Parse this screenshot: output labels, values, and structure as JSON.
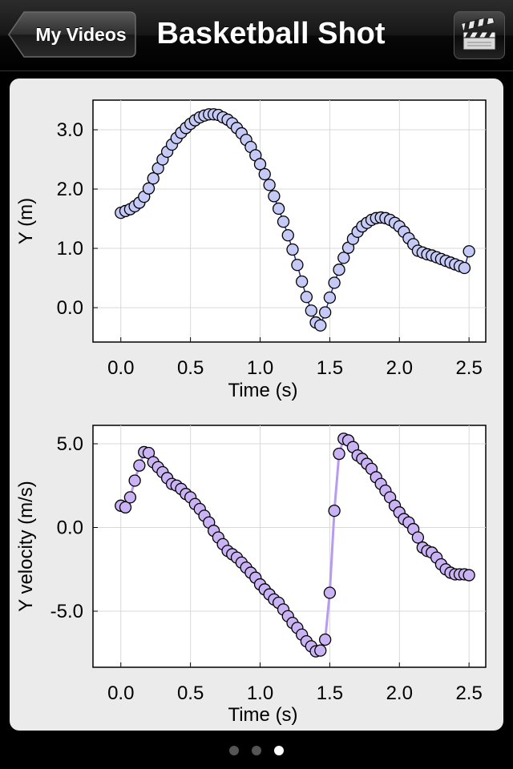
{
  "nav": {
    "back_label": "My Videos",
    "title": "Basketball Shot",
    "action_icon": "clapperboard-icon"
  },
  "pager": {
    "pages": 3,
    "current": 3
  },
  "colors": {
    "marker_fill": "#c5c9f6",
    "marker_fill_velocity": "#c9b3f4",
    "marker_stroke": "#000000",
    "line_velocity": "#b89bf0",
    "line_position": "#1e2a8c",
    "grid": "#d9d9d9"
  },
  "chart_data": [
    {
      "type": "scatter",
      "xlabel": "Time (s)",
      "ylabel": "Y (m)",
      "xlim": [
        -0.2,
        2.62
      ],
      "ylim": [
        -0.58,
        3.5
      ],
      "xticks": [
        "0.0",
        "0.5",
        "1.0",
        "1.5",
        "2.0",
        "2.5"
      ],
      "xtick_values": [
        0,
        0.5,
        1.0,
        1.5,
        2.0,
        2.5
      ],
      "yticks": [
        "0.0",
        "1.0",
        "2.0",
        "3.0"
      ],
      "ytick_values": [
        0,
        1,
        2,
        3
      ],
      "grid": true,
      "series": [
        {
          "x": [
            0.0,
            0.033,
            0.067,
            0.1,
            0.133,
            0.167,
            0.2,
            0.233,
            0.267,
            0.3,
            0.333,
            0.367,
            0.4,
            0.433,
            0.467,
            0.5,
            0.533,
            0.567,
            0.6,
            0.633,
            0.667,
            0.7,
            0.733,
            0.767,
            0.8,
            0.833,
            0.867,
            0.9,
            0.933,
            0.967,
            1.0,
            1.033,
            1.067,
            1.1,
            1.133,
            1.167,
            1.2,
            1.233,
            1.267,
            1.3,
            1.333,
            1.367,
            1.4,
            1.433,
            1.467,
            1.5,
            1.533,
            1.567,
            1.6,
            1.633,
            1.667,
            1.7,
            1.733,
            1.767,
            1.8,
            1.833,
            1.867,
            1.9,
            1.933,
            1.967,
            2.0,
            2.033,
            2.067,
            2.1,
            2.133,
            2.167,
            2.2,
            2.233,
            2.267,
            2.3,
            2.333,
            2.367,
            2.4,
            2.433,
            2.467,
            2.5
          ],
          "y": [
            1.6,
            1.63,
            1.66,
            1.71,
            1.77,
            1.87,
            2.01,
            2.18,
            2.35,
            2.5,
            2.63,
            2.75,
            2.86,
            2.95,
            3.03,
            3.1,
            3.16,
            3.21,
            3.24,
            3.26,
            3.26,
            3.25,
            3.21,
            3.17,
            3.11,
            3.03,
            2.94,
            2.83,
            2.71,
            2.57,
            2.42,
            2.25,
            2.07,
            1.88,
            1.67,
            1.45,
            1.22,
            0.98,
            0.72,
            0.44,
            0.18,
            -0.05,
            -0.25,
            -0.3,
            -0.08,
            0.17,
            0.42,
            0.64,
            0.84,
            1.01,
            1.16,
            1.28,
            1.37,
            1.43,
            1.48,
            1.51,
            1.52,
            1.51,
            1.48,
            1.43,
            1.37,
            1.28,
            1.17,
            1.07,
            0.96,
            0.93,
            0.9,
            0.88,
            0.85,
            0.82,
            0.79,
            0.76,
            0.73,
            0.7,
            0.67,
            0.95
          ]
        }
      ]
    },
    {
      "type": "line",
      "xlabel": "Time (s)",
      "ylabel": "Y velocity (m/s)",
      "xlim": [
        -0.2,
        2.62
      ],
      "ylim": [
        -8.35,
        6.1
      ],
      "xticks": [
        "0.0",
        "0.5",
        "1.0",
        "1.5",
        "2.0",
        "2.5"
      ],
      "xtick_values": [
        0,
        0.5,
        1.0,
        1.5,
        2.0,
        2.5
      ],
      "yticks": [
        "5.0",
        "0.0",
        "-5.0"
      ],
      "ytick_values": [
        5,
        0,
        -5
      ],
      "grid": true,
      "series": [
        {
          "x": [
            0.0,
            0.033,
            0.067,
            0.1,
            0.133,
            0.167,
            0.2,
            0.233,
            0.267,
            0.3,
            0.333,
            0.367,
            0.4,
            0.433,
            0.467,
            0.5,
            0.533,
            0.567,
            0.6,
            0.633,
            0.667,
            0.7,
            0.733,
            0.767,
            0.8,
            0.833,
            0.867,
            0.9,
            0.933,
            0.967,
            1.0,
            1.033,
            1.067,
            1.1,
            1.133,
            1.167,
            1.2,
            1.233,
            1.267,
            1.3,
            1.333,
            1.367,
            1.4,
            1.433,
            1.467,
            1.5,
            1.533,
            1.567,
            1.6,
            1.633,
            1.667,
            1.7,
            1.733,
            1.767,
            1.8,
            1.833,
            1.867,
            1.9,
            1.933,
            1.967,
            2.0,
            2.033,
            2.067,
            2.1,
            2.133,
            2.167,
            2.2,
            2.233,
            2.267,
            2.3,
            2.333,
            2.367,
            2.4,
            2.433,
            2.467,
            2.5
          ],
          "y": [
            1.3,
            1.2,
            1.8,
            2.8,
            3.7,
            4.5,
            4.45,
            3.9,
            3.6,
            3.3,
            2.95,
            2.6,
            2.5,
            2.3,
            2.0,
            1.8,
            1.4,
            1.1,
            0.7,
            0.3,
            -0.2,
            -0.6,
            -1.0,
            -1.4,
            -1.6,
            -1.8,
            -2.1,
            -2.4,
            -2.7,
            -3.0,
            -3.4,
            -3.7,
            -4.0,
            -4.3,
            -4.5,
            -4.9,
            -5.3,
            -5.7,
            -6.0,
            -6.4,
            -6.8,
            -7.1,
            -7.4,
            -7.35,
            -6.7,
            -3.9,
            1.0,
            4.4,
            5.3,
            5.2,
            4.8,
            4.3,
            4.1,
            3.8,
            3.5,
            3.0,
            2.6,
            2.2,
            1.8,
            1.3,
            0.9,
            0.5,
            0.3,
            -0.1,
            -0.6,
            -1.2,
            -1.4,
            -1.5,
            -1.8,
            -2.2,
            -2.5,
            -2.7,
            -2.8,
            -2.8,
            -2.8,
            -2.85
          ]
        }
      ]
    }
  ]
}
